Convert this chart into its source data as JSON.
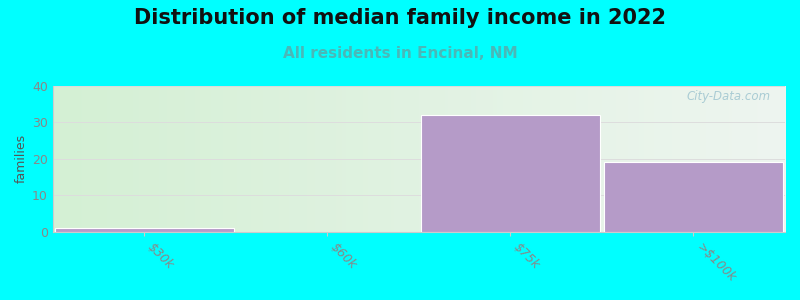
{
  "title": "Distribution of median family income in 2022",
  "subtitle": "All residents in Encinal, NM",
  "categories": [
    "$30k",
    "$60k",
    "$75k",
    ">$100k"
  ],
  "values": [
    1,
    0,
    32,
    19
  ],
  "bar_color": "#b59bc8",
  "bar_edge_color": "#ffffff",
  "background_color": "#00ffff",
  "gradient_left": "#d4f0d4",
  "gradient_right": "#eef5f0",
  "ylabel": "families",
  "ylim": [
    0,
    40
  ],
  "yticks": [
    0,
    10,
    20,
    30,
    40
  ],
  "title_fontsize": 15,
  "title_fontweight": "bold",
  "subtitle_fontsize": 11,
  "subtitle_color": "#4ab8b8",
  "watermark": "City-Data.com",
  "watermark_color": "#aaccd4",
  "grid_color": "#dddddd",
  "axis_color": "#cccccc",
  "tick_color": "#888888"
}
